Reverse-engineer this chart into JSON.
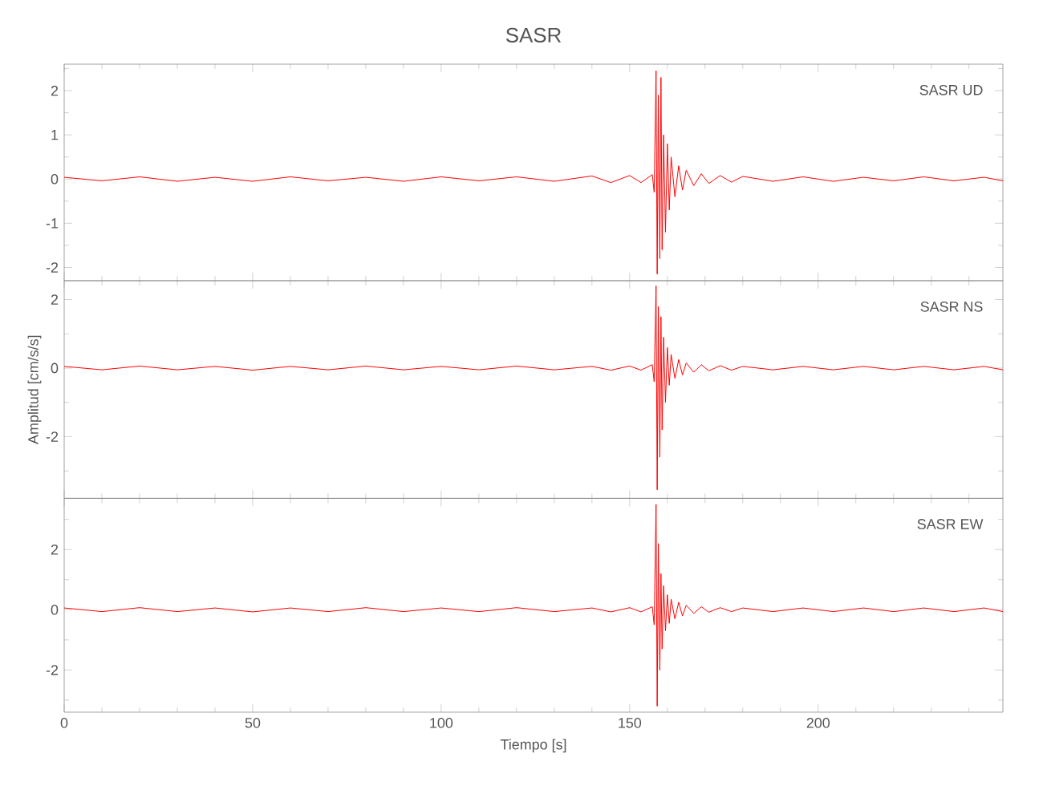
{
  "chart_data": [
    {
      "type": "line",
      "title": "SASR",
      "annotations": [
        "SASR   UD"
      ],
      "xlim": [
        0,
        249
      ],
      "ylim": [
        -2.3,
        2.6
      ],
      "tick_labels": "y",
      "xticks": [
        0,
        {
          "value": 10,
          "label": null
        },
        {
          "value": 20,
          "label": null
        },
        {
          "value": 30,
          "label": null
        },
        {
          "value": 40,
          "label": null
        },
        50,
        {
          "value": 60,
          "label": null
        },
        {
          "value": 70,
          "label": null
        },
        {
          "value": 80,
          "label": null
        },
        {
          "value": 90,
          "label": null
        },
        100,
        {
          "value": 110,
          "label": null
        },
        {
          "value": 120,
          "label": null
        },
        {
          "value": 130,
          "label": null
        },
        {
          "value": 140,
          "label": null
        },
        150,
        {
          "value": 160,
          "label": null
        },
        {
          "value": 170,
          "label": null
        },
        {
          "value": 180,
          "label": null
        },
        {
          "value": 190,
          "label": null
        },
        200,
        {
          "value": 210,
          "label": null
        },
        {
          "value": 220,
          "label": null
        },
        {
          "value": 230,
          "label": null
        },
        {
          "value": 240,
          "label": null
        }
      ],
      "yticks": [
        -2,
        {
          "value": -1.5,
          "label": null
        },
        -1,
        {
          "value": -0.5,
          "label": null
        },
        0,
        {
          "value": 0.5,
          "label": null
        },
        1,
        {
          "value": 1.5,
          "label": null
        },
        2,
        {
          "value": 2.5,
          "label": null
        }
      ],
      "x": [
        0,
        10,
        20,
        30,
        40,
        50,
        60,
        70,
        80,
        90,
        100,
        110,
        120,
        130,
        140,
        145,
        150,
        153,
        156,
        156.5,
        157,
        157.3,
        157.6,
        158,
        158.3,
        158.6,
        159,
        159.5,
        160,
        160.5,
        161,
        162,
        163,
        164,
        165,
        167,
        169,
        171,
        174,
        177,
        180,
        188,
        196,
        204,
        212,
        220,
        228,
        236,
        244,
        249
      ],
      "series": [
        {
          "color": "#ff0000",
          "values": [
            0.04,
            -0.04,
            0.05,
            -0.05,
            0.04,
            -0.05,
            0.05,
            -0.04,
            0.04,
            -0.05,
            0.05,
            -0.04,
            0.05,
            -0.05,
            0.07,
            -0.08,
            0.08,
            -0.08,
            0.1,
            -0.3,
            2.45,
            -2.15,
            1.9,
            -1.8,
            2.3,
            -1.6,
            1.0,
            -1.2,
            0.8,
            -0.7,
            0.5,
            -0.4,
            0.3,
            -0.25,
            0.2,
            -0.15,
            0.12,
            -0.1,
            0.08,
            -0.07,
            0.06,
            -0.05,
            0.05,
            -0.05,
            0.04,
            -0.04,
            0.05,
            -0.04,
            0.04,
            -0.04
          ]
        }
      ]
    },
    {
      "type": "line",
      "ylabel": "Amplitud [cm/s/s]",
      "annotations": [
        "SASR   NS"
      ],
      "xlim": [
        0,
        249
      ],
      "ylim": [
        -3.8,
        2.55
      ],
      "tick_labels": "y",
      "xticks": [
        0,
        {
          "value": 10,
          "label": null
        },
        {
          "value": 20,
          "label": null
        },
        {
          "value": 30,
          "label": null
        },
        {
          "value": 40,
          "label": null
        },
        50,
        {
          "value": 60,
          "label": null
        },
        {
          "value": 70,
          "label": null
        },
        {
          "value": 80,
          "label": null
        },
        {
          "value": 90,
          "label": null
        },
        100,
        {
          "value": 110,
          "label": null
        },
        {
          "value": 120,
          "label": null
        },
        {
          "value": 130,
          "label": null
        },
        {
          "value": 140,
          "label": null
        },
        150,
        {
          "value": 160,
          "label": null
        },
        {
          "value": 170,
          "label": null
        },
        {
          "value": 180,
          "label": null
        },
        {
          "value": 190,
          "label": null
        },
        200,
        {
          "value": 210,
          "label": null
        },
        {
          "value": 220,
          "label": null
        },
        {
          "value": 230,
          "label": null
        },
        {
          "value": 240,
          "label": null
        }
      ],
      "yticks": [
        {
          "value": -3,
          "label": null
        },
        -2,
        {
          "value": -1,
          "label": null
        },
        0,
        {
          "value": 1,
          "label": null
        },
        2
      ],
      "x": [
        0,
        10,
        20,
        30,
        40,
        50,
        60,
        70,
        80,
        90,
        100,
        110,
        120,
        130,
        140,
        145,
        150,
        153,
        156,
        156.5,
        157,
        157.3,
        157.6,
        158,
        158.3,
        158.6,
        159,
        159.5,
        160,
        160.5,
        161,
        162,
        163,
        164,
        165,
        167,
        169,
        171,
        174,
        177,
        180,
        188,
        196,
        204,
        212,
        220,
        228,
        236,
        244,
        249
      ],
      "series": [
        {
          "color": "#ff0000",
          "values": [
            0.05,
            -0.05,
            0.06,
            -0.05,
            0.05,
            -0.06,
            0.05,
            -0.05,
            0.06,
            -0.05,
            0.05,
            -0.05,
            0.06,
            -0.05,
            0.05,
            -0.06,
            0.06,
            -0.06,
            0.1,
            -0.4,
            2.4,
            -3.55,
            1.8,
            -2.6,
            1.5,
            -1.8,
            0.9,
            -1.0,
            0.6,
            -0.5,
            0.4,
            -0.3,
            0.25,
            -0.2,
            0.15,
            -0.12,
            0.1,
            -0.08,
            0.07,
            -0.06,
            0.05,
            -0.05,
            0.05,
            -0.05,
            0.05,
            -0.05,
            0.05,
            -0.05,
            0.05,
            -0.05
          ]
        }
      ]
    },
    {
      "type": "line",
      "xlabel": "Tiempo [s]",
      "annotations": [
        "SASR   EW"
      ],
      "xlim": [
        0,
        249
      ],
      "ylim": [
        -3.4,
        3.7
      ],
      "xticks": [
        0,
        {
          "value": 10,
          "label": null
        },
        {
          "value": 20,
          "label": null
        },
        {
          "value": 30,
          "label": null
        },
        {
          "value": 40,
          "label": null
        },
        50,
        {
          "value": 60,
          "label": null
        },
        {
          "value": 70,
          "label": null
        },
        {
          "value": 80,
          "label": null
        },
        {
          "value": 90,
          "label": null
        },
        100,
        {
          "value": 110,
          "label": null
        },
        {
          "value": 120,
          "label": null
        },
        {
          "value": 130,
          "label": null
        },
        {
          "value": 140,
          "label": null
        },
        150,
        {
          "value": 160,
          "label": null
        },
        {
          "value": 170,
          "label": null
        },
        {
          "value": 180,
          "label": null
        },
        {
          "value": 190,
          "label": null
        },
        200,
        {
          "value": 210,
          "label": null
        },
        {
          "value": 220,
          "label": null
        },
        {
          "value": 230,
          "label": null
        },
        {
          "value": 240,
          "label": null
        }
      ],
      "yticks": [
        {
          "value": -3,
          "label": null
        },
        -2,
        {
          "value": -1,
          "label": null
        },
        0,
        {
          "value": 1,
          "label": null
        },
        2,
        {
          "value": 3,
          "label": null
        }
      ],
      "x": [
        0,
        10,
        20,
        30,
        40,
        50,
        60,
        70,
        80,
        90,
        100,
        110,
        120,
        130,
        140,
        145,
        150,
        153,
        156,
        156.5,
        157,
        157.3,
        157.6,
        158,
        158.3,
        158.6,
        159,
        159.5,
        160,
        160.5,
        161,
        162,
        163,
        164,
        165,
        167,
        169,
        171,
        174,
        177,
        180,
        188,
        196,
        204,
        212,
        220,
        228,
        236,
        244,
        249
      ],
      "series": [
        {
          "color": "#ff0000",
          "values": [
            0.06,
            -0.06,
            0.07,
            -0.06,
            0.06,
            -0.07,
            0.06,
            -0.06,
            0.07,
            -0.06,
            0.06,
            -0.06,
            0.07,
            -0.06,
            0.06,
            -0.07,
            0.07,
            -0.07,
            0.1,
            -0.5,
            3.5,
            -3.2,
            2.2,
            -2.0,
            1.2,
            -1.3,
            0.8,
            -0.7,
            0.5,
            -0.45,
            0.35,
            -0.3,
            0.25,
            -0.2,
            0.15,
            -0.12,
            0.1,
            -0.08,
            0.07,
            -0.06,
            0.06,
            -0.06,
            0.06,
            -0.06,
            0.06,
            -0.06,
            0.06,
            -0.06,
            0.06,
            -0.06
          ]
        }
      ]
    }
  ]
}
